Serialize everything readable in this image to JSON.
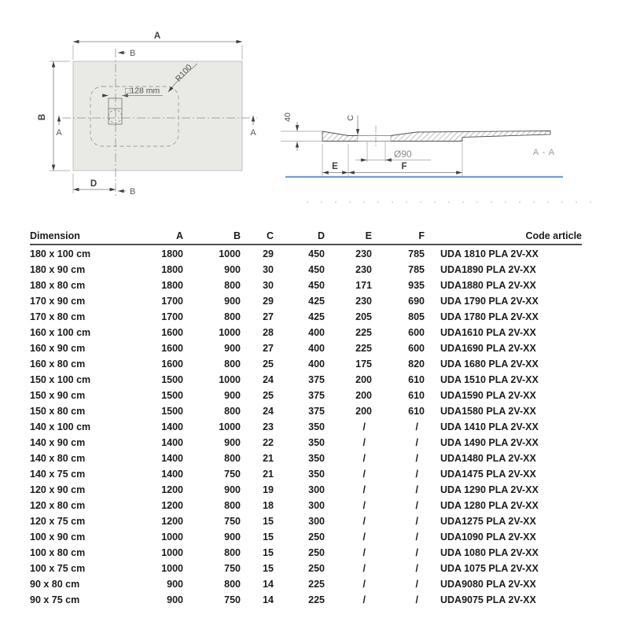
{
  "drawing": {
    "plan": {
      "width_label": "A",
      "height_label": "B",
      "drain_offset_label": "D",
      "section_marker_top": "B",
      "section_marker_bottom": "B",
      "section_marker_left": "A",
      "section_marker_right": "A",
      "drain_size_label": "□128 mm",
      "corner_radius_label": "R100"
    },
    "section": {
      "view_title": "A - A",
      "rim_height_label": "40",
      "depth_label": "C",
      "drain_diameter_label": "Ø90",
      "dim_e_label": "E",
      "dim_f_label": "F"
    },
    "colors": {
      "tray_fill": "#e9eae6",
      "floor_line": "#6f9ed6"
    }
  },
  "table": {
    "columns": [
      "Dimension",
      "A",
      "B",
      "C",
      "D",
      "E",
      "F",
      "Code article"
    ],
    "rows": [
      [
        "180 x 100 cm",
        "1800",
        "1000",
        "29",
        "450",
        "230",
        "785",
        "UDA 1810 PLA 2V-XX"
      ],
      [
        "180 x 90 cm",
        "1800",
        "900",
        "30",
        "450",
        "230",
        "785",
        "UDA1890 PLA 2V-XX"
      ],
      [
        "180 x 80 cm",
        "1800",
        "800",
        "30",
        "450",
        "171",
        "935",
        "UDA1880 PLA 2V-XX"
      ],
      [
        "170 x 90 cm",
        "1700",
        "900",
        "29",
        "425",
        "230",
        "690",
        "UDA 1790 PLA 2V-XX"
      ],
      [
        "170 x 80 cm",
        "1700",
        "800",
        "27",
        "425",
        "205",
        "805",
        "UDA 1780 PLA 2V-XX"
      ],
      [
        "160 x 100 cm",
        "1600",
        "1000",
        "28",
        "400",
        "225",
        "600",
        "UDA1610 PLA 2V-XX"
      ],
      [
        "160 x 90 cm",
        "1600",
        "900",
        "27",
        "400",
        "225",
        "600",
        "UDA1690 PLA 2V-XX"
      ],
      [
        "160 x 80 cm",
        "1600",
        "800",
        "25",
        "400",
        "175",
        "820",
        "UDA 1680 PLA 2V-XX"
      ],
      [
        "150 x 100 cm",
        "1500",
        "1000",
        "24",
        "375",
        "200",
        "610",
        "UDA 1510 PLA 2V-XX"
      ],
      [
        "150 x 90 cm",
        "1500",
        "900",
        "25",
        "375",
        "200",
        "610",
        "UDA1590 PLA 2V-XX"
      ],
      [
        "150 x 80 cm",
        "1500",
        "800",
        "24",
        "375",
        "200",
        "610",
        "UDA1580 PLA 2V-XX"
      ],
      [
        "140 x 100 cm",
        "1400",
        "1000",
        "23",
        "350",
        "/",
        "/",
        "UDA 1410 PLA 2V-XX"
      ],
      [
        "140 x 90 cm",
        "1400",
        "900",
        "22",
        "350",
        "/",
        "/",
        "UDA 1490 PLA 2V-XX"
      ],
      [
        "140 x 80 cm",
        "1400",
        "800",
        "21",
        "350",
        "/",
        "/",
        "UDA1480 PLA 2V-XX"
      ],
      [
        "140 x 75 cm",
        "1400",
        "750",
        "21",
        "350",
        "/",
        "/",
        "UDA1475 PLA 2V-XX"
      ],
      [
        "120 x 90 cm",
        "1200",
        "900",
        "19",
        "300",
        "/",
        "/",
        "UDA 1290 PLA 2V-XX"
      ],
      [
        "120 x 80 cm",
        "1200",
        "800",
        "18",
        "300",
        "/",
        "/",
        "UDA 1280 PLA 2V-XX"
      ],
      [
        "120 x 75 cm",
        "1200",
        "750",
        "15",
        "300",
        "/",
        "/",
        "UDA1275 PLA 2V-XX"
      ],
      [
        "100 x 90 cm",
        "1000",
        "900",
        "15",
        "250",
        "/",
        "/",
        "UDA1090 PLA 2V-XX"
      ],
      [
        "100 x 80 cm",
        "1000",
        "800",
        "15",
        "250",
        "/",
        "/",
        "UDA 1080 PLA 2V-XX"
      ],
      [
        "100 x 75 cm",
        "1000",
        "750",
        "15",
        "250",
        "/",
        "/",
        "UDA 1075 PLA 2V-XX"
      ],
      [
        "90 x 80 cm",
        "900",
        "800",
        "14",
        "225",
        "/",
        "/",
        "UDA9080 PLA 2V-XX"
      ],
      [
        "90 x 75 cm",
        "900",
        "750",
        "14",
        "225",
        "/",
        "/",
        "UDA9075 PLA 2V-XX"
      ]
    ]
  }
}
